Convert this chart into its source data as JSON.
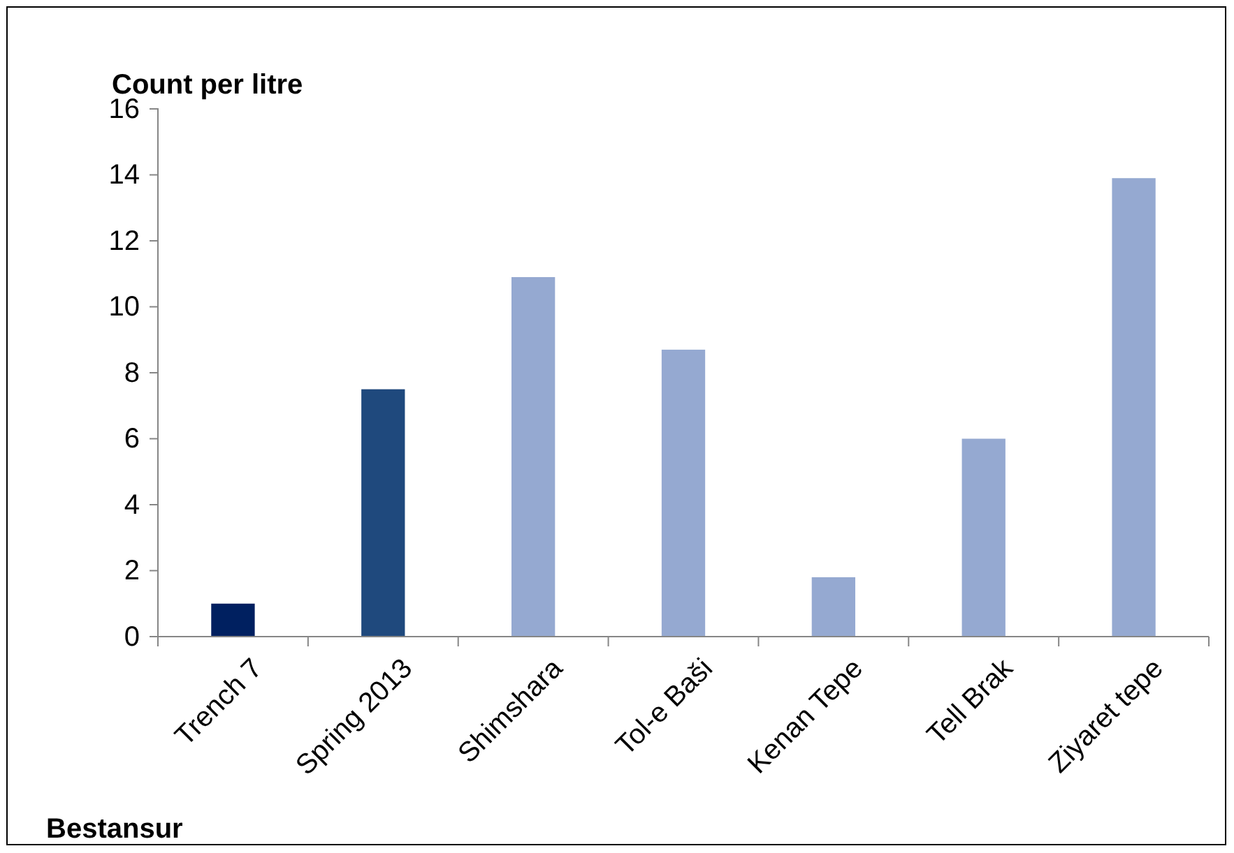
{
  "chart_data": {
    "type": "bar",
    "ylabel": "Count per litre",
    "categories": [
      "Trench 7",
      "Spring 2013",
      "Shimshara",
      "Tol-e Baši",
      "Kenan Tepe",
      "Tell Brak",
      "Ziyaret tepe"
    ],
    "values": [
      1.0,
      7.5,
      10.9,
      8.7,
      1.8,
      6.0,
      13.9
    ],
    "colors": [
      "#002060",
      "#1f497d",
      "#95a9d1",
      "#95a9d1",
      "#95a9d1",
      "#95a9d1",
      "#95a9d1"
    ],
    "ylim": [
      0,
      16
    ],
    "yticks": [
      0,
      2,
      4,
      6,
      8,
      10,
      12,
      14,
      16
    ],
    "grid": false,
    "annotations": [
      "Bestansur"
    ]
  }
}
